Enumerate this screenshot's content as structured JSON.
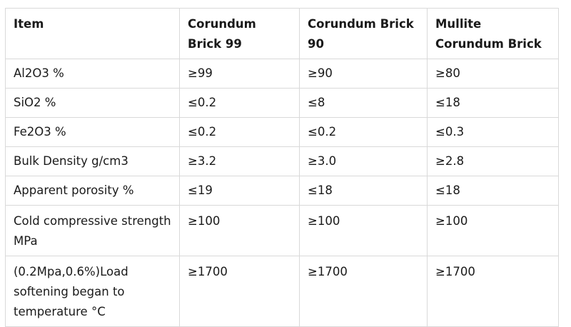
{
  "table": {
    "headers": [
      "Item",
      "Corundum Brick 99",
      "Corundum Brick 90",
      "Mullite Corundum Brick"
    ],
    "rows": [
      [
        "Al2O3 %",
        "≥99",
        "≥90",
        "≥80"
      ],
      [
        "SiO2 %",
        "≤0.2",
        "≤8",
        "≤18"
      ],
      [
        "Fe2O3 %",
        "≤0.2",
        "≤0.2",
        "≤0.3"
      ],
      [
        "Bulk Density g/cm3",
        "≥3.2",
        "≥3.0",
        "≥2.8"
      ],
      [
        "Apparent porosity %",
        "≤19",
        "≤18",
        "≤18"
      ],
      [
        "Cold compressive strength MPa",
        "≥100",
        "≥100",
        "≥100"
      ],
      [
        "(0.2Mpa,0.6%)Load softening began to temperature °C",
        "≥1700",
        "≥1700",
        "≥1700"
      ]
    ]
  }
}
